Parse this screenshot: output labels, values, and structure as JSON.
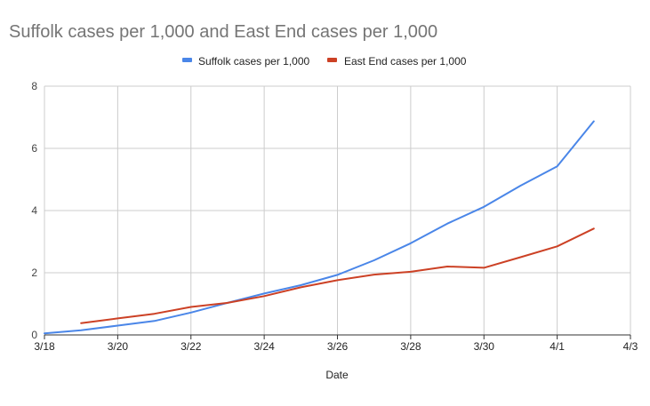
{
  "chart_data": {
    "type": "line",
    "title": "Suffolk cases per 1,000 and East End cases per 1,000",
    "xlabel": "Date",
    "ylabel": "",
    "x_ticks": [
      "3/18",
      "3/20",
      "3/22",
      "3/24",
      "3/26",
      "3/28",
      "3/30",
      "4/1",
      "4/3"
    ],
    "xlim": [
      "3/18",
      "4/3"
    ],
    "y_ticks": [
      0,
      2,
      4,
      6,
      8
    ],
    "ylim": [
      0,
      8
    ],
    "grid": true,
    "legend_position": "top",
    "series": [
      {
        "name": "Suffolk cases per 1,000",
        "color": "#4a86e8",
        "x": [
          "3/18",
          "3/19",
          "3/20",
          "3/21",
          "3/22",
          "3/23",
          "3/24",
          "3/25",
          "3/26",
          "3/27",
          "3/28",
          "3/29",
          "3/30",
          "3/31",
          "4/1",
          "4/2"
        ],
        "values": [
          0.05,
          0.15,
          0.3,
          0.45,
          0.72,
          1.03,
          1.33,
          1.6,
          1.93,
          2.4,
          2.95,
          3.58,
          4.12,
          4.8,
          5.42,
          6.87
        ]
      },
      {
        "name": "East End cases per 1,000",
        "color": "#cc4125",
        "x": [
          "3/19",
          "3/20",
          "3/21",
          "3/22",
          "3/23",
          "3/24",
          "3/25",
          "3/26",
          "3/27",
          "3/28",
          "3/29",
          "3/30",
          "3/31",
          "4/1",
          "4/2"
        ],
        "values": [
          0.38,
          0.53,
          0.68,
          0.9,
          1.03,
          1.25,
          1.53,
          1.76,
          1.94,
          2.03,
          2.2,
          2.16,
          2.5,
          2.85,
          3.42
        ]
      }
    ]
  }
}
